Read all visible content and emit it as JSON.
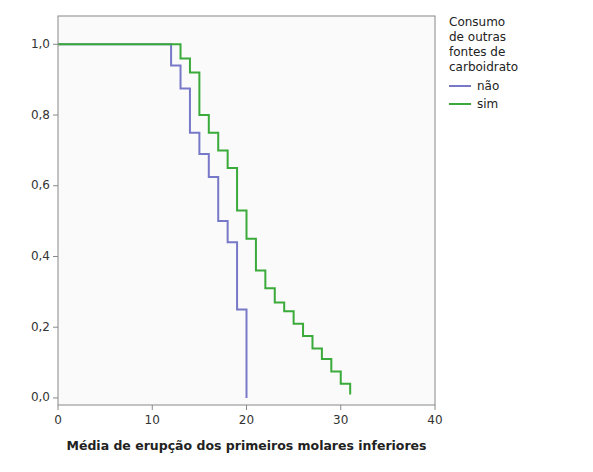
{
  "chart_data": {
    "type": "line",
    "xlabel": "Média de erupção dos primeiros molares inferiores",
    "legend_title": "Consumo\nde outras\nfontes de\ncarboidrato",
    "xlim": [
      0,
      40
    ],
    "ylim": [
      -0.02,
      1.08
    ],
    "xticks": [
      0,
      10,
      20,
      30,
      40
    ],
    "yticks": [
      {
        "value": 0.0,
        "label": "0,0"
      },
      {
        "value": 0.2,
        "label": "0,2"
      },
      {
        "value": 0.4,
        "label": "0,4"
      },
      {
        "value": 0.6,
        "label": "0,6"
      },
      {
        "value": 0.8,
        "label": "0,8"
      },
      {
        "value": 1.0,
        "label": "1,0"
      }
    ],
    "grid": false,
    "legend": "right",
    "series": [
      {
        "name": "não",
        "color": "#7878c8",
        "x": [
          0,
          12,
          12,
          13,
          13,
          14,
          14,
          15,
          15,
          16,
          16,
          17,
          17,
          18,
          18,
          19,
          19,
          20,
          20
        ],
        "values": [
          1.0,
          1.0,
          0.94,
          0.94,
          0.875,
          0.875,
          0.75,
          0.75,
          0.69,
          0.69,
          0.625,
          0.625,
          0.5,
          0.5,
          0.44,
          0.44,
          0.25,
          0.25,
          0.0
        ]
      },
      {
        "name": "sim",
        "color": "#3aaa3a",
        "x": [
          0,
          13,
          13,
          14,
          14,
          15,
          15,
          16,
          16,
          17,
          17,
          18,
          18,
          19,
          19,
          20,
          20,
          21,
          21,
          22,
          22,
          23,
          23,
          24,
          24,
          25,
          25,
          26,
          26,
          27,
          27,
          28,
          28,
          29,
          29,
          30,
          30,
          31,
          31
        ],
        "values": [
          1.0,
          1.0,
          0.96,
          0.96,
          0.92,
          0.92,
          0.8,
          0.8,
          0.75,
          0.75,
          0.7,
          0.7,
          0.65,
          0.65,
          0.53,
          0.53,
          0.45,
          0.45,
          0.36,
          0.36,
          0.31,
          0.31,
          0.27,
          0.27,
          0.245,
          0.245,
          0.21,
          0.21,
          0.175,
          0.175,
          0.14,
          0.14,
          0.11,
          0.11,
          0.075,
          0.075,
          0.04,
          0.04,
          0.01
        ]
      }
    ]
  }
}
